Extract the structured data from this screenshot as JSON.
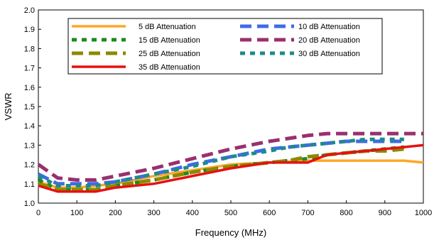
{
  "chart_data": {
    "type": "line",
    "title": "",
    "xlabel": "Frequency (MHz)",
    "ylabel": "VSWR",
    "xlim": [
      0,
      1000
    ],
    "ylim": [
      1.0,
      2.0
    ],
    "x_ticks": [
      "0",
      "100",
      "200",
      "300",
      "400",
      "500",
      "600",
      "700",
      "800",
      "900",
      "1000"
    ],
    "y_ticks": [
      "1.0",
      "1.1",
      "1.2",
      "1.3",
      "1.4",
      "1.5",
      "1.6",
      "1.7",
      "1.8",
      "1.9",
      "2.0"
    ],
    "grid": "none",
    "legend_position": "top",
    "series": [
      {
        "name": "5 dB Attenuation",
        "color": "#FFA726",
        "dash": "solid",
        "x": [
          0,
          50,
          100,
          150,
          200,
          300,
          400,
          500,
          600,
          700,
          750,
          800,
          850,
          900,
          950,
          1000
        ],
        "y": [
          1.11,
          1.08,
          1.08,
          1.09,
          1.1,
          1.14,
          1.17,
          1.2,
          1.21,
          1.22,
          1.22,
          1.22,
          1.22,
          1.22,
          1.22,
          1.21
        ]
      },
      {
        "name": "10 dB Attenuation",
        "color": "#3F6BE8",
        "dash": "long-dash",
        "x": [
          0,
          50,
          100,
          150,
          200,
          300,
          400,
          500,
          600,
          650,
          700,
          750,
          800,
          850,
          900,
          950
        ],
        "y": [
          1.15,
          1.1,
          1.1,
          1.1,
          1.11,
          1.15,
          1.2,
          1.24,
          1.28,
          1.29,
          1.3,
          1.31,
          1.32,
          1.32,
          1.32,
          1.32
        ]
      },
      {
        "name": "15 dB Attenuation",
        "color": "#1E8A1E",
        "dash": "short-dash",
        "x": [
          0,
          50,
          100,
          150,
          200,
          300,
          400,
          500,
          600,
          650,
          700,
          750,
          800,
          850,
          900,
          950
        ],
        "y": [
          1.12,
          1.07,
          1.07,
          1.07,
          1.09,
          1.12,
          1.16,
          1.19,
          1.21,
          1.22,
          1.23,
          1.25,
          1.26,
          1.27,
          1.28,
          1.29
        ]
      },
      {
        "name": "20 dB Attenuation",
        "color": "#98306E",
        "dash": "long-dash",
        "x": [
          0,
          50,
          100,
          150,
          200,
          300,
          400,
          500,
          600,
          700,
          750,
          800,
          850,
          900,
          950,
          1000
        ],
        "y": [
          1.2,
          1.13,
          1.12,
          1.12,
          1.14,
          1.18,
          1.23,
          1.28,
          1.32,
          1.35,
          1.36,
          1.36,
          1.36,
          1.36,
          1.36,
          1.36
        ]
      },
      {
        "name": "25 dB Attenuation",
        "color": "#8A8A00",
        "dash": "long-dash",
        "x": [
          0,
          50,
          100,
          150,
          200,
          300,
          400,
          500,
          600,
          650,
          700,
          750,
          800,
          850,
          900,
          950
        ],
        "y": [
          1.1,
          1.07,
          1.07,
          1.07,
          1.09,
          1.12,
          1.16,
          1.19,
          1.21,
          1.22,
          1.24,
          1.25,
          1.26,
          1.27,
          1.27,
          1.28
        ]
      },
      {
        "name": "30 dB Attenuation",
        "color": "#1E8A8A",
        "dash": "short-dash",
        "x": [
          0,
          50,
          100,
          150,
          200,
          300,
          400,
          500,
          600,
          650,
          700,
          750,
          800,
          850,
          900,
          950
        ],
        "y": [
          1.14,
          1.09,
          1.09,
          1.09,
          1.11,
          1.15,
          1.19,
          1.24,
          1.27,
          1.29,
          1.3,
          1.31,
          1.32,
          1.33,
          1.33,
          1.33
        ]
      },
      {
        "name": "35 dB Attenuation",
        "color": "#E81010",
        "dash": "solid",
        "x": [
          0,
          50,
          100,
          150,
          200,
          300,
          400,
          500,
          600,
          650,
          700,
          750,
          800,
          850,
          900,
          950,
          1000
        ],
        "y": [
          1.09,
          1.06,
          1.06,
          1.06,
          1.08,
          1.1,
          1.14,
          1.18,
          1.21,
          1.21,
          1.21,
          1.25,
          1.26,
          1.27,
          1.28,
          1.29,
          1.3
        ]
      }
    ]
  }
}
